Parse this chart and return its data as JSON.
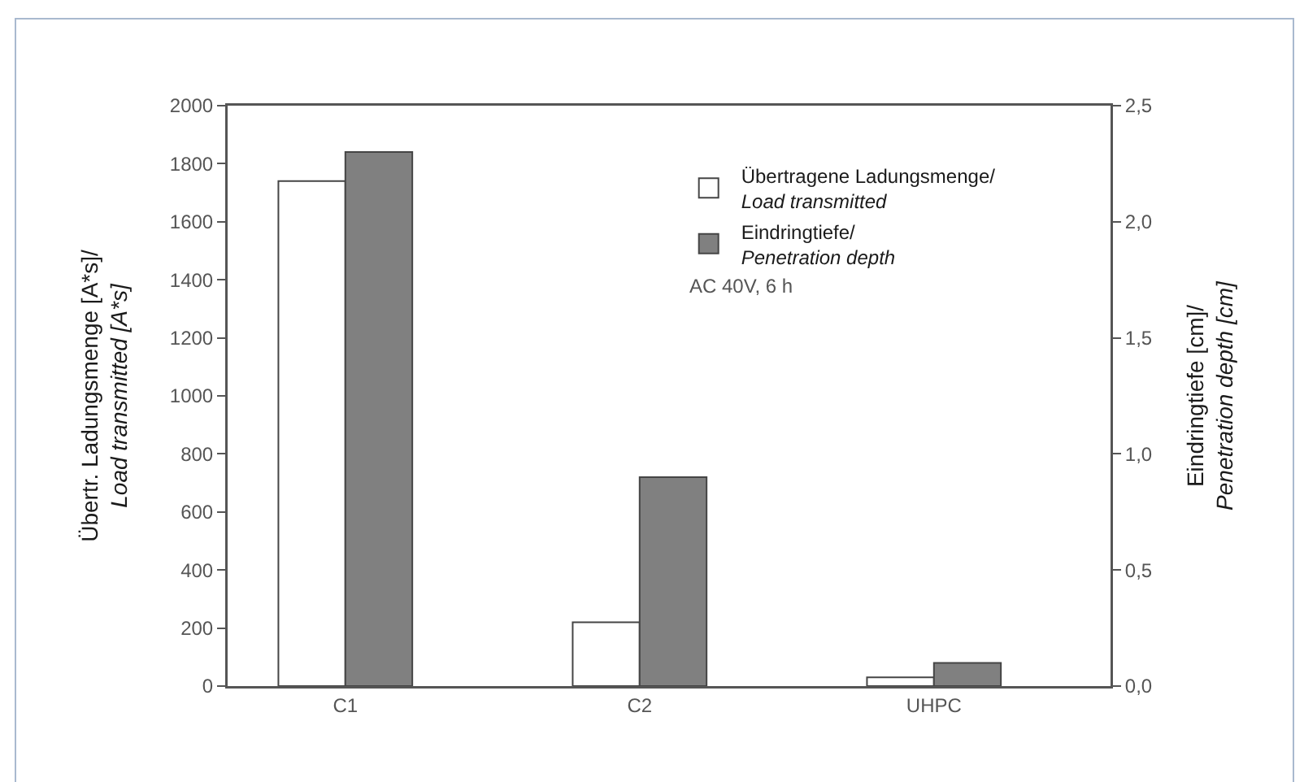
{
  "chart_data": {
    "type": "bar",
    "categories": [
      "C1",
      "C2",
      "UHPC"
    ],
    "series": [
      {
        "name": "Übertragene Ladungsmenge/\nLoad transmitted",
        "color": "#ffffff",
        "values": [
          1740,
          220,
          30
        ]
      },
      {
        "name": "Eindringtiefe/\nPenetration depth",
        "color": "#808080",
        "values": [
          2.3,
          0.9,
          0.1
        ],
        "axis": "y2"
      }
    ],
    "ylabel": "Übertr. Ladungsmenge [A*s]/\nLoad transmitted [A*s]",
    "y2label": "Eindringtiefe [cm]/\nPenetration depth [cm]",
    "ylim": [
      0,
      2000
    ],
    "yticks": [
      0,
      200,
      400,
      600,
      800,
      1000,
      1200,
      1400,
      1600,
      1800,
      2000
    ],
    "y2lim": [
      0,
      2.5
    ],
    "y2ticks": [
      {
        "value": 0,
        "label": "0,0"
      },
      {
        "value": 0.5,
        "label": "0,5"
      },
      {
        "value": 1,
        "label": "1,0"
      },
      {
        "value": 1.5,
        "label": "1,5"
      },
      {
        "value": 2,
        "label": "2,0"
      },
      {
        "value": 2.5,
        "label": "2,5"
      }
    ],
    "annotations": [
      "AC 40V, 6 h"
    ],
    "legend": "top right"
  }
}
